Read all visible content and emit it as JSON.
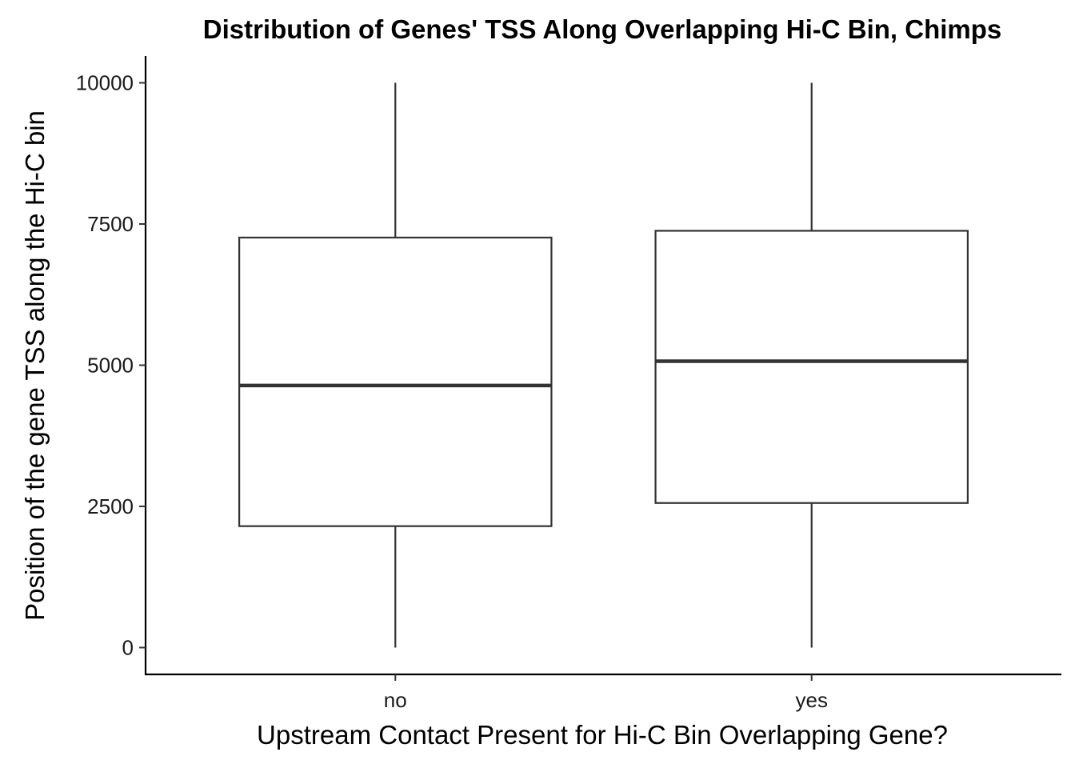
{
  "chart_data": {
    "type": "boxplot",
    "title": "Distribution of Genes' TSS Along Overlapping Hi-C Bin, Chimps",
    "xlabel": "Upstream Contact Present for Hi-C Bin Overlapping Gene?",
    "ylabel": "Position of the gene TSS along the Hi-C bin",
    "categories": [
      "no",
      "yes"
    ],
    "boxes": [
      {
        "category": "no",
        "min": 0,
        "q1": 2150,
        "median": 4640,
        "q3": 7260,
        "max": 10000
      },
      {
        "category": "yes",
        "min": 0,
        "q1": 2560,
        "median": 5070,
        "q3": 7380,
        "max": 10000
      }
    ],
    "ylim": [
      -475,
      10475
    ],
    "yticks": [
      0,
      2500,
      5000,
      7500,
      10000
    ],
    "ytick_labels": [
      "0",
      "2500",
      "5000",
      "7500",
      "10000"
    ],
    "grid": false,
    "legend": "none"
  }
}
